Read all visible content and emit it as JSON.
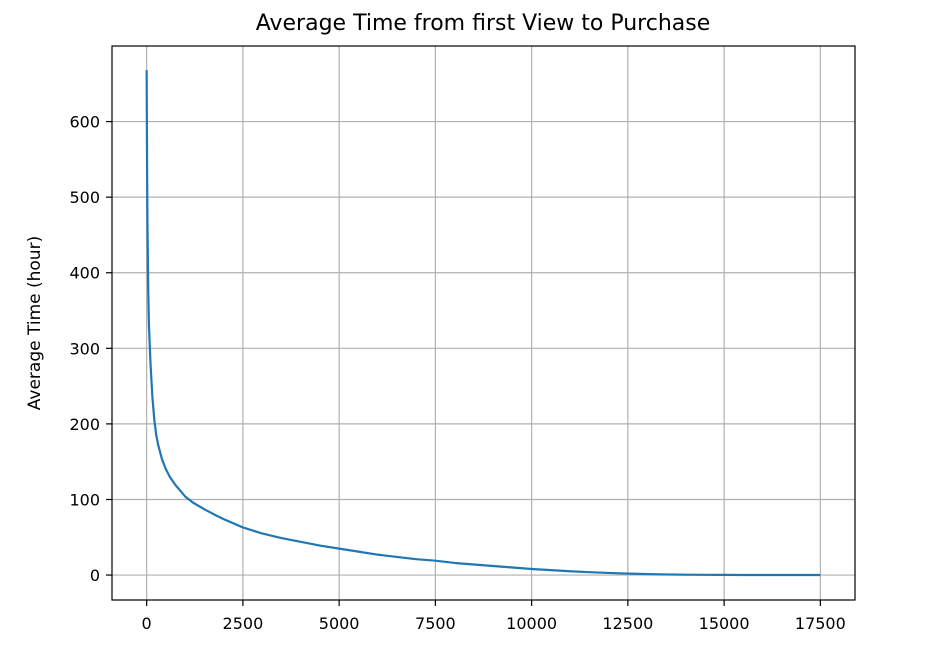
{
  "chart_data": {
    "type": "line",
    "title": "Average Time from first View to Purchase",
    "xlabel": "",
    "ylabel": "Average Time (hour)",
    "xlim": [
      -900,
      18400
    ],
    "ylim": [
      -33,
      700
    ],
    "xticks": [
      0,
      2500,
      5000,
      7500,
      10000,
      12500,
      15000,
      17500
    ],
    "xtick_labels": [
      "0",
      "2500",
      "5000",
      "7500",
      "10000",
      "12500",
      "15000",
      "17500"
    ],
    "yticks": [
      0,
      100,
      200,
      300,
      400,
      500,
      600
    ],
    "ytick_labels": [
      "0",
      "100",
      "200",
      "300",
      "400",
      "500",
      "600"
    ],
    "grid": true,
    "legend": "none",
    "colors": {
      "line": "#1f77b4",
      "grid": "#b0b0b0",
      "axes": "#000000"
    },
    "series": [
      {
        "x": [
          0,
          10,
          20,
          40,
          60,
          100,
          150,
          200,
          250,
          300,
          400,
          500,
          600,
          750,
          900,
          1000,
          1200,
          1500,
          1800,
          2000,
          2500,
          3000,
          3500,
          4000,
          4500,
          5000,
          5500,
          6000,
          6500,
          7000,
          7500,
          8000,
          8500,
          9000,
          9500,
          10000,
          10500,
          11000,
          11500,
          12000,
          12500,
          13000,
          13500,
          14000,
          14500,
          15000,
          15500,
          16000,
          16500,
          17000,
          17500
        ],
        "y": [
          668,
          550,
          470,
          380,
          330,
          280,
          235,
          205,
          185,
          172,
          153,
          140,
          130,
          119,
          110,
          104,
          96,
          87,
          79,
          74,
          63,
          55,
          49,
          44,
          39,
          35,
          31,
          27,
          24,
          21,
          19,
          16,
          14,
          12,
          10,
          8,
          6.5,
          5,
          3.8,
          2.8,
          2,
          1.3,
          0.8,
          0.5,
          0.3,
          0.2,
          0.1,
          0.1,
          0.1,
          0.1,
          0.1
        ]
      }
    ]
  }
}
